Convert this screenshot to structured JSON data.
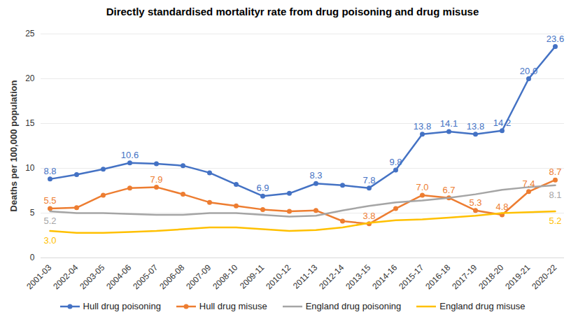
{
  "chart_data": {
    "type": "line",
    "title": "Directly standardised mortalityr rate from drug poisoning and drug misuse",
    "y_label": "Deaths per 100,000 population",
    "categories": [
      "2001-03",
      "2002-04",
      "2003-05",
      "2004-06",
      "2005-07",
      "2006-08",
      "2007-09",
      "2008-10",
      "2009-11",
      "2010-12",
      "2011-13",
      "2012-14",
      "2013-15",
      "2014-16",
      "2015-17",
      "2016-18",
      "2017-19",
      "2018-20",
      "2019-21",
      "2020-22"
    ],
    "series": [
      {
        "name": "Hull drug poisoning",
        "color": "#4472c4",
        "marker": "circle",
        "values": [
          8.8,
          9.3,
          9.9,
          10.6,
          10.5,
          10.3,
          9.5,
          8.2,
          6.9,
          7.2,
          8.3,
          8.1,
          7.8,
          9.8,
          13.8,
          14.1,
          13.8,
          14.2,
          20.0,
          23.6
        ],
        "value_labels": [
          "8.8",
          null,
          null,
          "10.6",
          null,
          null,
          null,
          null,
          "6.9",
          null,
          "8.3",
          null,
          "7.8",
          "9.8",
          "13.8",
          "14.1",
          "13.8",
          "14.2",
          "20.0",
          "23.6"
        ]
      },
      {
        "name": "Hull drug misuse",
        "color": "#ed7d31",
        "marker": "circle",
        "values": [
          5.5,
          5.6,
          7.0,
          7.8,
          7.9,
          7.1,
          6.2,
          5.8,
          5.4,
          5.2,
          5.3,
          4.1,
          3.8,
          5.5,
          7.0,
          6.7,
          5.3,
          4.8,
          7.4,
          8.7
        ],
        "value_labels": [
          "5.5",
          null,
          null,
          null,
          "7.9",
          null,
          null,
          null,
          null,
          null,
          null,
          null,
          "3.8",
          null,
          "7.0",
          "6.7",
          "5.3",
          "4.8",
          "7.4",
          "8.7"
        ]
      },
      {
        "name": "England drug poisoning",
        "color": "#a5a5a5",
        "marker": "none",
        "values": [
          5.2,
          5.0,
          5.0,
          4.9,
          4.8,
          4.8,
          5.0,
          5.0,
          4.8,
          4.6,
          4.7,
          5.3,
          5.8,
          6.2,
          6.4,
          6.7,
          7.1,
          7.6,
          7.9,
          8.1
        ],
        "value_labels": [
          "5.2",
          null,
          null,
          null,
          null,
          null,
          null,
          null,
          null,
          null,
          null,
          null,
          null,
          null,
          null,
          null,
          null,
          null,
          null,
          "8.1"
        ]
      },
      {
        "name": "England drug misuse",
        "color": "#ffc000",
        "marker": "none",
        "values": [
          3.0,
          2.8,
          2.8,
          2.9,
          3.0,
          3.2,
          3.4,
          3.4,
          3.2,
          3.0,
          3.1,
          3.4,
          3.9,
          4.2,
          4.3,
          4.5,
          4.7,
          5.0,
          5.1,
          5.2
        ],
        "value_labels": [
          "3.0",
          null,
          null,
          null,
          null,
          null,
          null,
          null,
          null,
          null,
          null,
          null,
          null,
          null,
          null,
          null,
          null,
          null,
          null,
          "5.2"
        ]
      }
    ],
    "ylim": [
      0,
      25
    ],
    "yticks": [
      0,
      5,
      10,
      15,
      20,
      25
    ],
    "grid": true,
    "legend": "bottom",
    "data_labels": true
  }
}
